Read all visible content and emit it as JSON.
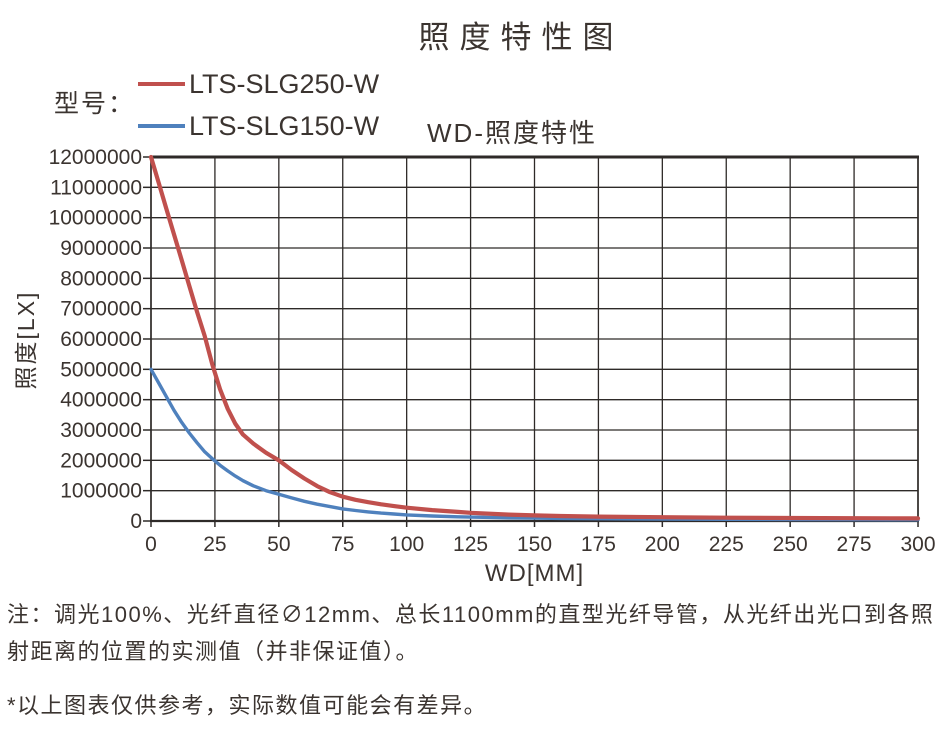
{
  "page": {
    "title": "照度特性图"
  },
  "legend": {
    "caption": "型号：",
    "items": [
      {
        "name": "LTS-SLG250-W",
        "color": "#c0504d"
      },
      {
        "name": "LTS-SLG150-W",
        "color": "#4f81bd"
      }
    ]
  },
  "chart_data": {
    "type": "line",
    "title": "WD-照度特性",
    "xlabel": "WD[MM]",
    "ylabel": "照度[LX]",
    "xlim": [
      0,
      300
    ],
    "ylim": [
      0,
      12000000
    ],
    "x_tick_step": 25,
    "y_tick_step": 1000000,
    "grid": true,
    "legend_position": "top-left-outside",
    "series": [
      {
        "name": "LTS-SLG250-W",
        "color": "#c0504d",
        "points": [
          [
            0,
            12000000
          ],
          [
            3,
            11150000
          ],
          [
            6,
            10300000
          ],
          [
            9,
            9450000
          ],
          [
            12,
            8600000
          ],
          [
            15,
            7750000
          ],
          [
            18,
            6900000
          ],
          [
            21,
            6100000
          ],
          [
            24,
            5150000
          ],
          [
            27,
            4350000
          ],
          [
            30,
            3700000
          ],
          [
            33,
            3200000
          ],
          [
            36,
            2850000
          ],
          [
            40,
            2550000
          ],
          [
            45,
            2250000
          ],
          [
            50,
            2000000
          ],
          [
            55,
            1680000
          ],
          [
            60,
            1400000
          ],
          [
            65,
            1150000
          ],
          [
            70,
            950000
          ],
          [
            75,
            800000
          ],
          [
            80,
            700000
          ],
          [
            85,
            620000
          ],
          [
            90,
            550000
          ],
          [
            95,
            490000
          ],
          [
            100,
            440000
          ],
          [
            110,
            360000
          ],
          [
            120,
            300000
          ],
          [
            125,
            270000
          ],
          [
            140,
            210000
          ],
          [
            150,
            185000
          ],
          [
            160,
            165000
          ],
          [
            175,
            145000
          ],
          [
            200,
            125000
          ],
          [
            225,
            110000
          ],
          [
            250,
            100000
          ],
          [
            275,
            92000
          ],
          [
            300,
            86000
          ]
        ]
      },
      {
        "name": "LTS-SLG150-W",
        "color": "#4f81bd",
        "points": [
          [
            0,
            5000000
          ],
          [
            3,
            4550000
          ],
          [
            6,
            4100000
          ],
          [
            9,
            3650000
          ],
          [
            12,
            3250000
          ],
          [
            15,
            2900000
          ],
          [
            18,
            2580000
          ],
          [
            21,
            2280000
          ],
          [
            24,
            2050000
          ],
          [
            27,
            1840000
          ],
          [
            30,
            1650000
          ],
          [
            33,
            1480000
          ],
          [
            36,
            1330000
          ],
          [
            40,
            1160000
          ],
          [
            45,
            1000000
          ],
          [
            50,
            880000
          ],
          [
            55,
            760000
          ],
          [
            60,
            650000
          ],
          [
            65,
            555000
          ],
          [
            70,
            475000
          ],
          [
            75,
            400000
          ],
          [
            80,
            345000
          ],
          [
            85,
            300000
          ],
          [
            90,
            262000
          ],
          [
            95,
            230000
          ],
          [
            100,
            200000
          ],
          [
            110,
            165000
          ],
          [
            120,
            140000
          ],
          [
            125,
            130000
          ],
          [
            140,
            105000
          ],
          [
            150,
            95000
          ],
          [
            160,
            85000
          ],
          [
            175,
            75000
          ],
          [
            200,
            63000
          ],
          [
            225,
            55000
          ],
          [
            250,
            48000
          ],
          [
            275,
            43000
          ],
          [
            300,
            39000
          ]
        ]
      }
    ]
  },
  "notes": {
    "measurement": "注：调光100%、光纤直径∅12mm、总长1100mm的直型光纤导管，从光纤出光口到各照射距离的位置的实测值（并非保证值）。",
    "disclaimer": "*以上图表仅供参考，实际数值可能会有差异。"
  },
  "colors": {
    "text": "#3b3430",
    "grid": "#2e2a28",
    "background": "#ffffff"
  }
}
